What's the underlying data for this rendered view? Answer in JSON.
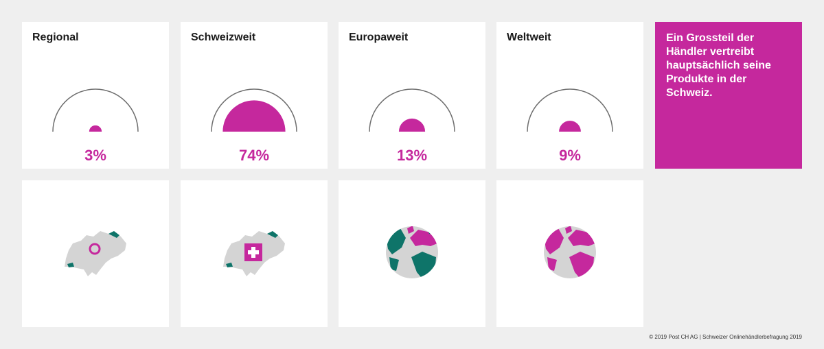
{
  "colors": {
    "accent": "#c5289d",
    "teal": "#0e7469",
    "land_gray": "#d4d4d4",
    "arc_gray": "#6e6e6e",
    "background": "#efefef"
  },
  "callout": {
    "text": "Ein Grossteil der Händler vertreibt hauptsächlich seine Produkte in der Schweiz."
  },
  "footer": "© 2019 Post CH AG | Schweizer Onlinehändlerbefragung 2019",
  "icons": [
    "switzerland-map-pin-icon",
    "switzerland-map-cross-icon",
    "globe-europe-icon",
    "globe-world-icon"
  ],
  "chart_data": {
    "type": "semicircle-gauge",
    "categories": [
      "Regional",
      "Schweizweit",
      "Europaweit",
      "Weltweit"
    ],
    "values": [
      3,
      74,
      13,
      9
    ],
    "value_labels": [
      "3%",
      "74%",
      "13%",
      "9%"
    ],
    "ylim": [
      0,
      100
    ]
  }
}
